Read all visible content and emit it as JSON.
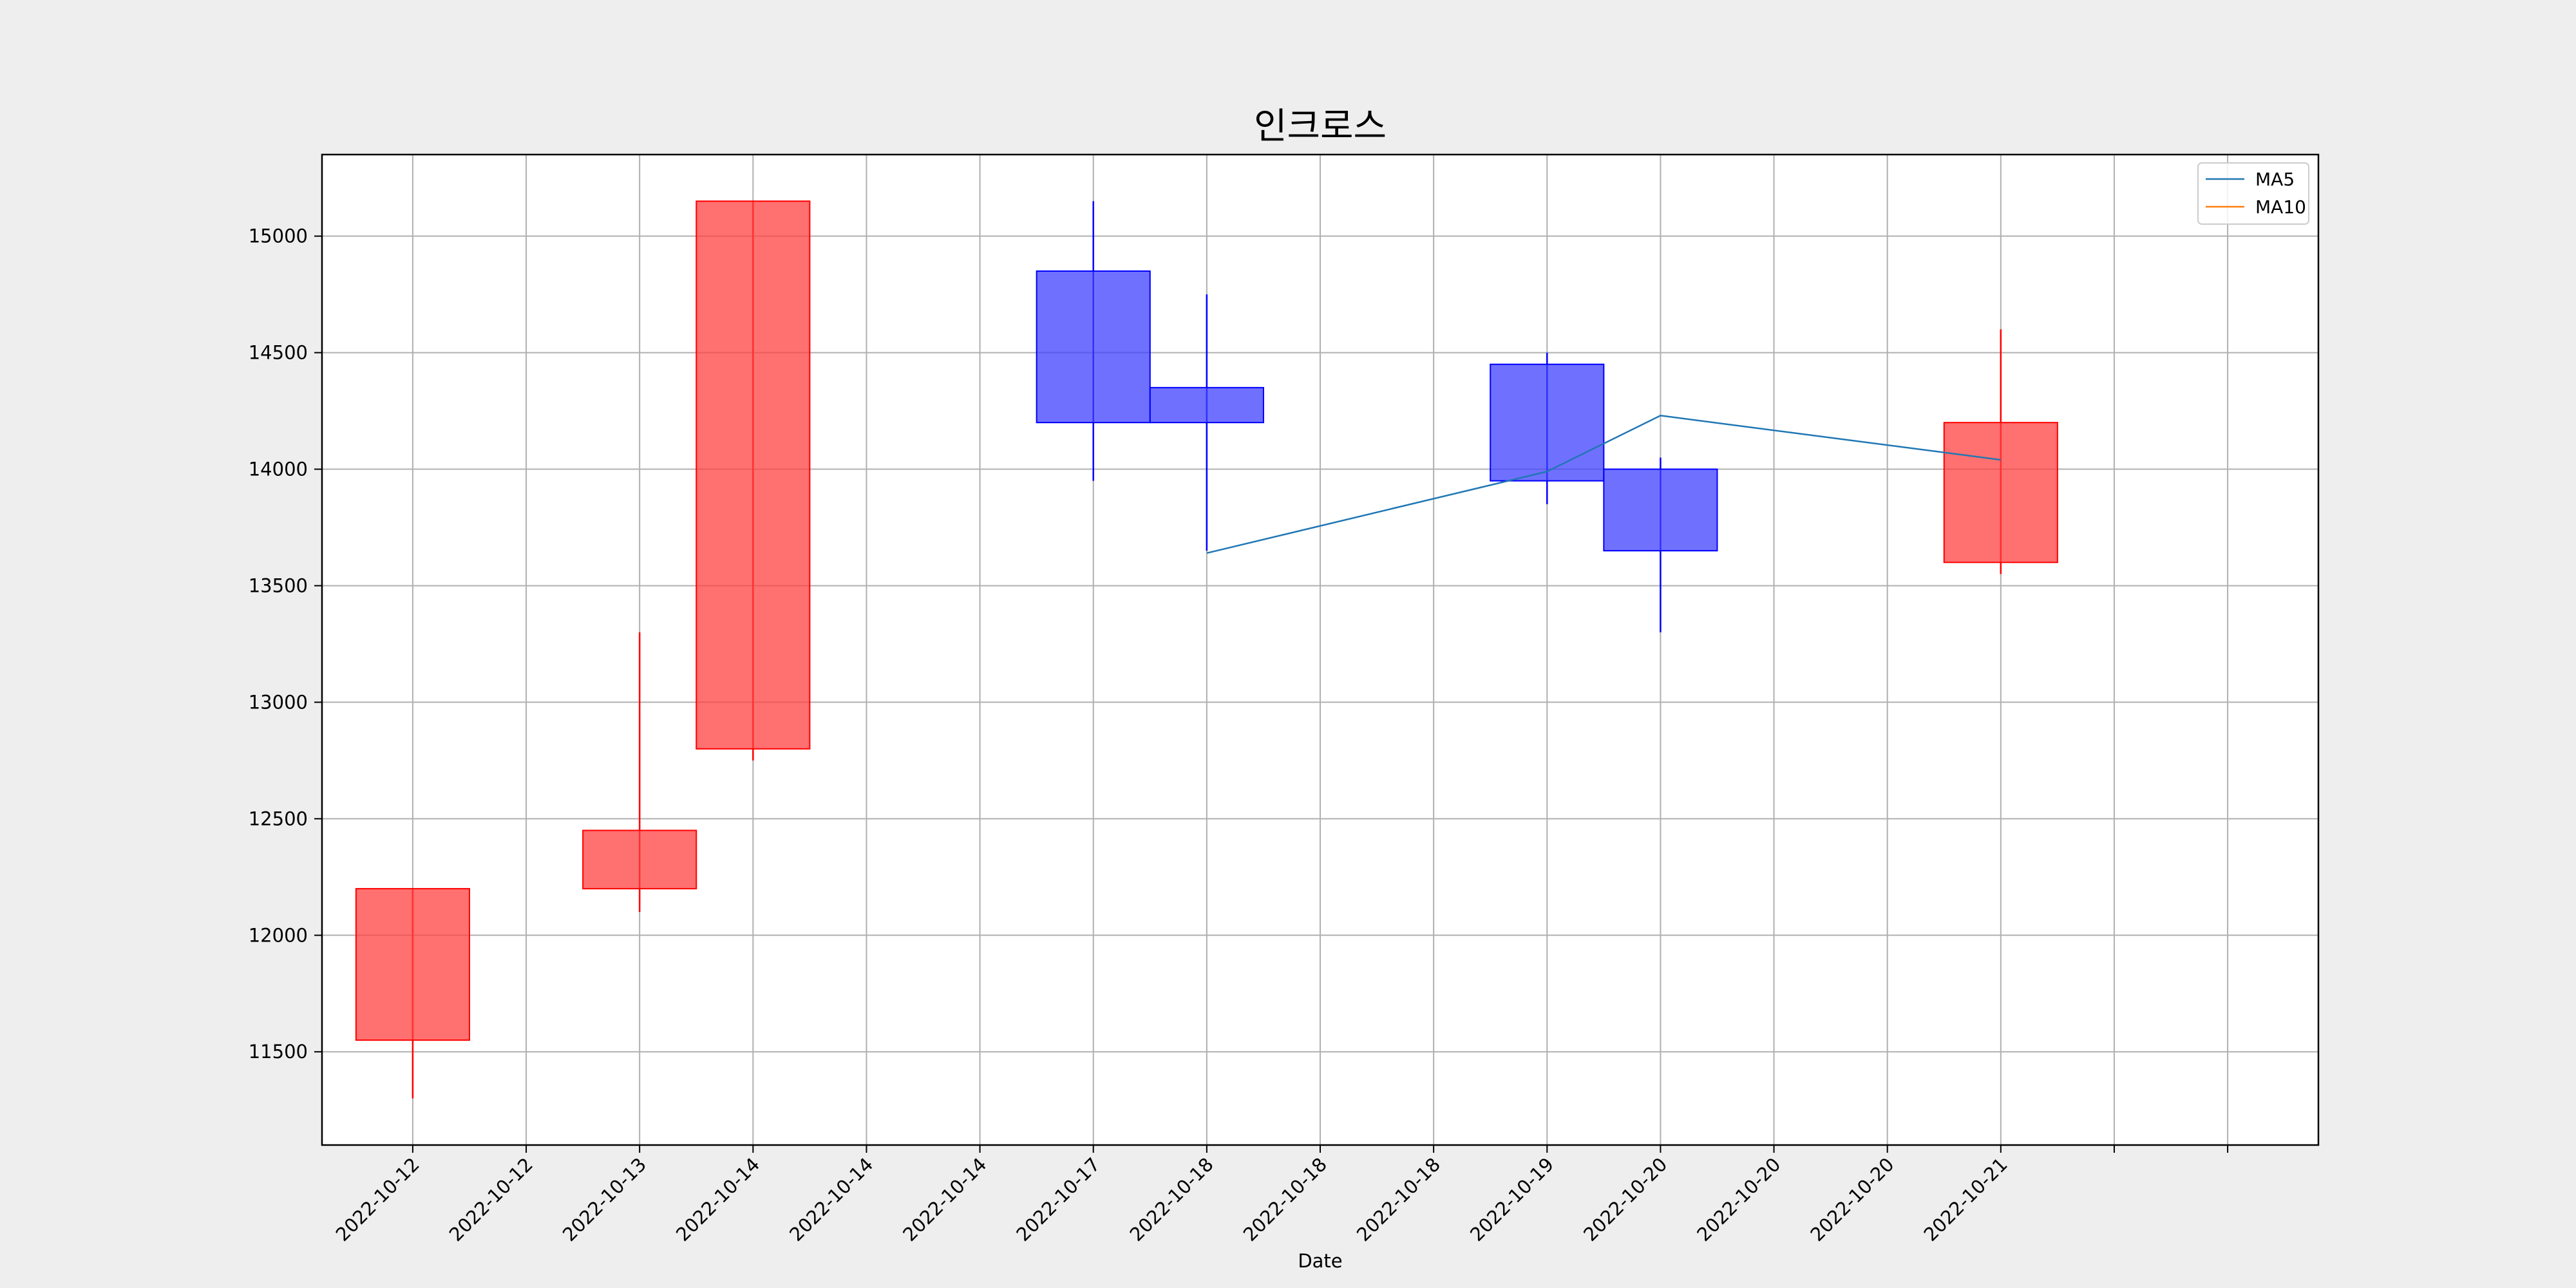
{
  "chart_data": {
    "type": "candlestick",
    "title": "인크로스",
    "xlabel": "Date",
    "ylabel": "",
    "ylim": [
      11100,
      15350
    ],
    "xlim": [
      -0.8,
      16.8
    ],
    "grid": true,
    "legend_position": "top-right",
    "yticks": [
      11500,
      12000,
      12500,
      13000,
      13500,
      14000,
      14500,
      15000
    ],
    "xtick_labels": [
      "2022-10-12",
      "2022-10-12",
      "2022-10-13",
      "2022-10-14",
      "2022-10-14",
      "2022-10-14",
      "2022-10-17",
      "2022-10-18",
      "2022-10-18",
      "2022-10-18",
      "2022-10-19",
      "2022-10-20",
      "2022-10-20",
      "2022-10-20",
      "2022-10-21",
      "",
      ""
    ],
    "candles": [
      {
        "date": "2022-10-12",
        "open": 11550,
        "high": 12200,
        "low": 11300,
        "close": 12200
      },
      {
        "date": "2022-10-13",
        "open": 12200,
        "high": 13300,
        "low": 12100,
        "close": 12450
      },
      {
        "date": "2022-10-14",
        "open": 12800,
        "high": 15150,
        "low": 12750,
        "close": 15150
      },
      {
        "date": "2022-10-17",
        "open": 14850,
        "high": 15150,
        "low": 13950,
        "close": 14200
      },
      {
        "date": "2022-10-18",
        "open": 14350,
        "high": 14750,
        "low": 13650,
        "close": 14200
      },
      {
        "date": "2022-10-19",
        "open": 14450,
        "high": 14500,
        "low": 13850,
        "close": 13950
      },
      {
        "date": "2022-10-20",
        "open": 14000,
        "high": 14050,
        "low": 13300,
        "close": 13650
      },
      {
        "date": "2022-10-21",
        "open": 13600,
        "high": 14600,
        "low": 13550,
        "close": 14200
      }
    ],
    "series": [
      {
        "name": "MA5",
        "color": "#1f77b4",
        "x": [
          "2022-10-18",
          "2022-10-19",
          "2022-10-20",
          "2022-10-21"
        ],
        "values": [
          13640,
          13990,
          14230,
          14040
        ]
      },
      {
        "name": "MA10",
        "color": "#ff7f0e",
        "x": [],
        "values": []
      }
    ],
    "colors": {
      "up": "#ff4040",
      "up_edge": "#ff0000",
      "down": "#4040ff",
      "down_edge": "#0000ff",
      "grid": "#b0b0b0"
    }
  }
}
